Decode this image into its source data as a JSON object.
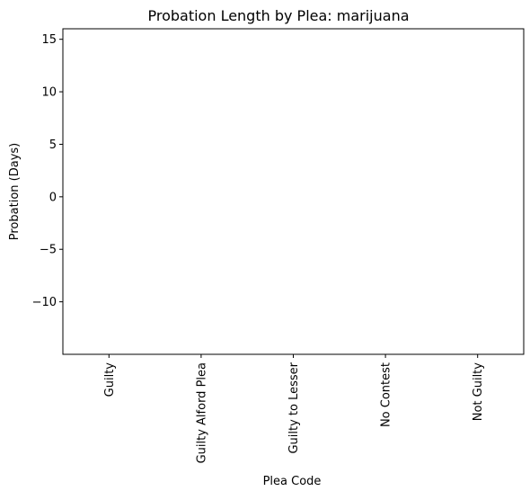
{
  "chart_data": {
    "type": "bar",
    "title": "Probation Length by Plea: marijuana",
    "xlabel": "Plea Code",
    "ylabel": "Probation (Days)",
    "categories": [
      "Guilty",
      "Guilty Alford Plea",
      "Guilty to Lesser",
      "No Contest",
      "Not Guilty"
    ],
    "values": [
      0,
      0,
      0,
      0,
      0
    ],
    "ylim": [
      -15,
      16
    ],
    "yticks": [
      -10,
      -5,
      0,
      5,
      10,
      15
    ],
    "ytick_labels": [
      "−10",
      "−5",
      "0",
      "5",
      "10",
      "15"
    ],
    "grid": false,
    "legend": "none"
  }
}
